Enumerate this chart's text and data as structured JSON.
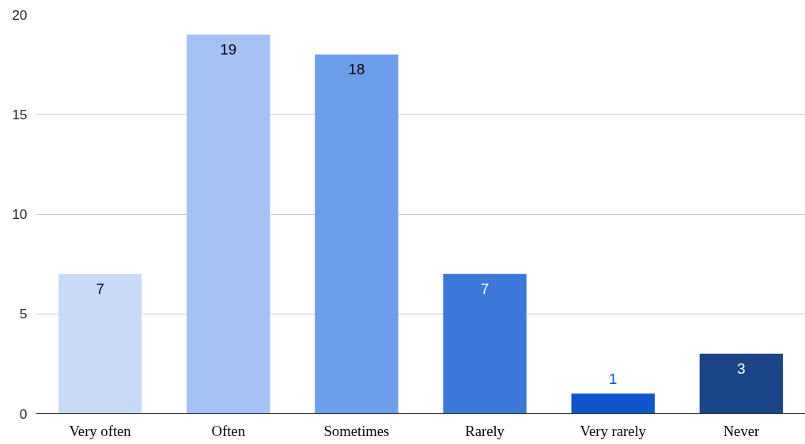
{
  "chart_data": {
    "type": "bar",
    "categories": [
      "Very often",
      "Often",
      "Sometimes",
      "Rarely",
      "Very rarely",
      "Never"
    ],
    "values": [
      7,
      19,
      18,
      7,
      1,
      3
    ],
    "colors": [
      "#c9daf8",
      "#a4c2f4",
      "#6d9eeb",
      "#3c78d8",
      "#1155cc",
      "#1c4587"
    ],
    "ylim": [
      0,
      20
    ],
    "yticks": [
      0,
      5,
      10,
      15,
      20
    ],
    "grid": "y",
    "data_labels": true
  }
}
